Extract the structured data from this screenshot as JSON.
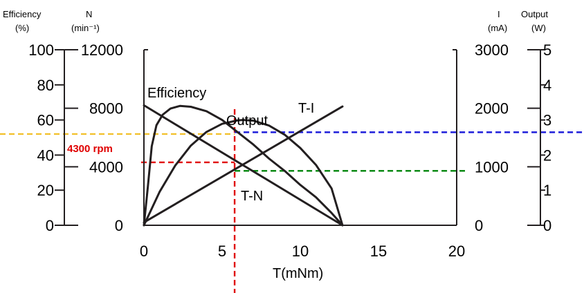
{
  "chart_data": {
    "type": "line",
    "title": "",
    "xlabel": "T(mNm)",
    "xlim": [
      0,
      20
    ],
    "x_ticks": [
      "0",
      "5",
      "10",
      "15",
      "20"
    ],
    "grid": false,
    "axes": {
      "efficiency": {
        "title": "Efficiency",
        "unit": "(%)",
        "range": [
          0,
          100
        ],
        "ticks": [
          "0",
          "20",
          "40",
          "60",
          "80",
          "100"
        ],
        "side": "left-outer"
      },
      "speed": {
        "title": "N",
        "unit": "(min⁻¹)",
        "range": [
          0,
          12000
        ],
        "ticks": [
          "0",
          "4000",
          "8000",
          "12000"
        ],
        "side": "left-inner"
      },
      "current": {
        "title": "I",
        "unit": "(mA)",
        "range": [
          0,
          3000
        ],
        "ticks": [
          "0",
          "1000",
          "2000",
          "3000"
        ],
        "side": "right-inner"
      },
      "output": {
        "title": "Output",
        "unit": "(W)",
        "range": [
          0,
          5
        ],
        "ticks": [
          "0",
          "1",
          "2",
          "3",
          "4",
          "5"
        ],
        "side": "right-outer"
      }
    },
    "series": [
      {
        "name": "Efficiency",
        "axis": "efficiency",
        "color": "#231f20",
        "x": [
          0,
          0.25,
          0.5,
          0.8,
          1.2,
          1.7,
          2.3,
          3,
          4,
          5,
          6,
          7,
          8,
          9,
          10,
          11,
          12,
          12.7
        ],
        "y": [
          0,
          22,
          45,
          57,
          63,
          66.5,
          68,
          67.5,
          65,
          60,
          53,
          46,
          38,
          31,
          23,
          16,
          7,
          0
        ]
      },
      {
        "name": "T-N",
        "axis": "speed",
        "color": "#231f20",
        "x": [
          0,
          12.7
        ],
        "y": [
          8200,
          0
        ]
      },
      {
        "name": "Output",
        "axis": "output",
        "color": "#231f20",
        "x": [
          0,
          1,
          2,
          3,
          4,
          5,
          6,
          6.35,
          7,
          8,
          9,
          10,
          11,
          12,
          12.7
        ],
        "y": [
          0,
          0.95,
          1.7,
          2.27,
          2.66,
          2.89,
          2.99,
          3.0,
          2.98,
          2.84,
          2.58,
          2.2,
          1.72,
          1.05,
          0
        ]
      },
      {
        "name": "T-I",
        "axis": "current",
        "color": "#231f20",
        "x": [
          0,
          12.7
        ],
        "y": [
          50,
          2030
        ]
      }
    ],
    "annotations": {
      "guides": [
        {
          "color": "#e00000",
          "label": "4300 rpm",
          "kind": "operating-point",
          "torque": 5.8,
          "speed": 4300
        },
        {
          "color": "#f2c12e",
          "kind": "efficiency-level",
          "value": 52
        },
        {
          "color": "#1c1cd9",
          "kind": "output-level",
          "value": 2.65
        },
        {
          "color": "#0b8a14",
          "kind": "current-level",
          "value": 930
        }
      ]
    }
  }
}
